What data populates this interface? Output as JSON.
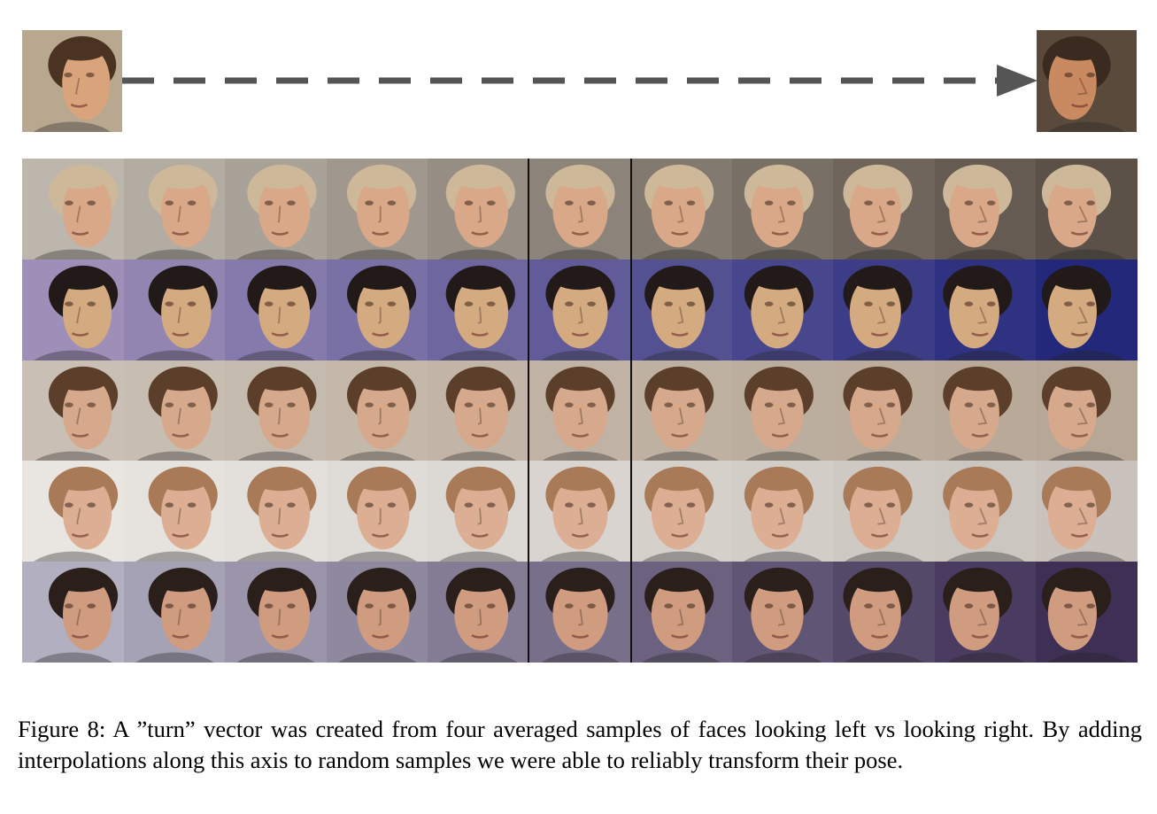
{
  "figure": {
    "caption": "Figure 8: A ”turn” vector was created from four averaged samples of faces looking left vs looking right. By adding interpolations along this axis to random samples we were able to reliably transform their pose.",
    "endpoints": {
      "left": {
        "turn": -1,
        "skin": "#d9a37c",
        "hair": "#4a3322",
        "bg": "#b8a890"
      },
      "right": {
        "turn": 1,
        "skin": "#c98a62",
        "hair": "#3a2a20",
        "bg": "#5a4a3c"
      }
    },
    "arrow_color": "#555555",
    "grid": {
      "steps": 11,
      "rows": [
        {
          "name": "row-1",
          "skin": "#d8a888",
          "hair": "#cdb89a",
          "bg": "#bdb6ad",
          "bg_end": "#5b5148"
        },
        {
          "name": "row-2",
          "skin": "#d4aa80",
          "hair": "#221a18",
          "bg": "#9e8fb8",
          "bg_end": "#23287a"
        },
        {
          "name": "row-3",
          "skin": "#d6a98c",
          "hair": "#5b3f2a",
          "bg": "#c9bfb4",
          "bg_end": "#b7a796"
        },
        {
          "name": "row-4",
          "skin": "#dcae94",
          "hair": "#a97a58",
          "bg": "#e9e6e1",
          "bg_end": "#c9c2bd"
        },
        {
          "name": "row-5",
          "skin": "#cf9c80",
          "hair": "#2a1f1a",
          "bg": "#b2afc0",
          "bg_end": "#3e2f55"
        }
      ]
    }
  }
}
